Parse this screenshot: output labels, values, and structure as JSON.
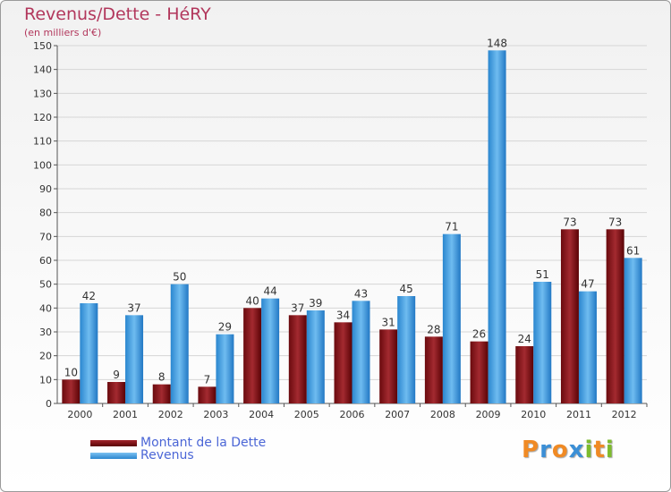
{
  "header": {
    "title": "Revenus/Dette - HéRY",
    "subtitle": "(en milliers d'€)"
  },
  "chart_data": {
    "type": "bar",
    "title": "Revenus/Dette - HéRY",
    "subtitle": "(en milliers d'€)",
    "xlabel": "",
    "ylabel": "",
    "ylim": [
      0,
      150
    ],
    "yticks": [
      0,
      10,
      20,
      30,
      40,
      50,
      60,
      70,
      80,
      90,
      100,
      110,
      120,
      130,
      140,
      150
    ],
    "grid": true,
    "legend_position": "bottom-left",
    "categories": [
      "2000",
      "2001",
      "2002",
      "2003",
      "2004",
      "2005",
      "2006",
      "2007",
      "2008",
      "2009",
      "2010",
      "2011",
      "2012"
    ],
    "series": [
      {
        "name": "Montant de la Dette",
        "color": "#7a0e12",
        "values": [
          10,
          9,
          8,
          7,
          40,
          37,
          34,
          31,
          28,
          26,
          24,
          73,
          73
        ]
      },
      {
        "name": "Revenus",
        "color": "#3d9be0",
        "values": [
          42,
          37,
          50,
          29,
          44,
          39,
          43,
          45,
          71,
          148,
          51,
          47,
          61
        ]
      }
    ]
  },
  "legend": {
    "items": [
      {
        "label": "Montant de la Dette",
        "color": "#6a0a0e"
      },
      {
        "label": "Revenus",
        "color": "#3d9be0"
      }
    ]
  },
  "logo": {
    "text": "Proxiti",
    "letters": [
      "P",
      "r",
      "o",
      "x",
      "i",
      "t",
      "i"
    ],
    "colors": [
      "#f08a24",
      "#3b8fd6",
      "#f08a24",
      "#3b8fd6",
      "#7dbb2e",
      "#f08a24",
      "#7dbb2e"
    ]
  }
}
